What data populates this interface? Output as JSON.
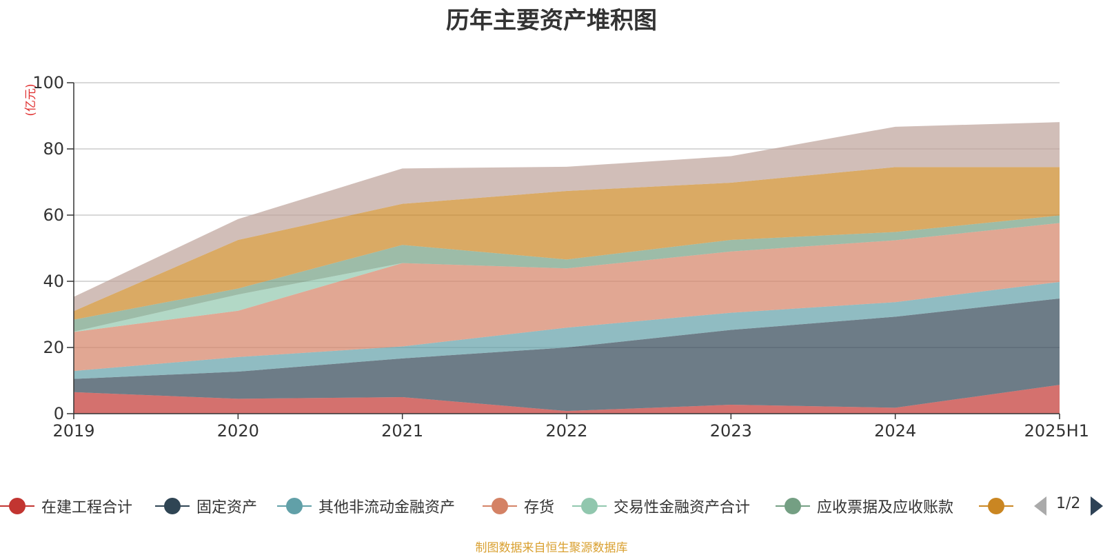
{
  "chart_data": {
    "type": "area",
    "title": "历年主要资产堆积图",
    "ylabel": "(亿元)",
    "xlabel": "",
    "stacked": true,
    "categories": [
      "2019",
      "2020",
      "2021",
      "2022",
      "2023",
      "2024",
      "2025H1"
    ],
    "ylim": [
      0,
      100
    ],
    "yticks": [
      0,
      20,
      40,
      60,
      80,
      100
    ],
    "grid": true,
    "series": [
      {
        "name": "在建工程合计",
        "color": "#c23531",
        "values": [
          6.5,
          4.5,
          5.0,
          0.8,
          2.7,
          1.8,
          8.7
        ]
      },
      {
        "name": "固定资产",
        "color": "#2f4554",
        "values": [
          4.0,
          8.2,
          11.7,
          19.2,
          22.6,
          27.5,
          26.1
        ]
      },
      {
        "name": "其他非流动金融资产",
        "color": "#61a0a8",
        "values": [
          2.4,
          4.4,
          3.6,
          6.0,
          5.2,
          4.4,
          5.0
        ]
      },
      {
        "name": "存货",
        "color": "#d48265",
        "values": [
          11.8,
          14.0,
          25.2,
          17.9,
          18.5,
          18.7,
          17.8
        ]
      },
      {
        "name": "交易性金融资产合计",
        "color": "#91c7ae",
        "values": [
          0.1,
          4.9,
          0.0,
          0.0,
          0.0,
          0.0,
          0.0
        ]
      },
      {
        "name": "应收票据及应收账款",
        "color": "#749f83",
        "values": [
          3.6,
          1.8,
          5.5,
          2.7,
          3.5,
          2.5,
          2.3
        ]
      },
      {
        "name": "",
        "color": "#ca8622",
        "values": [
          2.6,
          14.7,
          12.4,
          20.7,
          17.3,
          19.6,
          14.6
        ]
      },
      {
        "name": "",
        "color": "#bda29a",
        "values": [
          4.3,
          6.3,
          10.7,
          7.3,
          8.0,
          12.2,
          13.6
        ]
      }
    ]
  },
  "legend": {
    "items": [
      {
        "label": "在建工程合计",
        "color": "#c23531"
      },
      {
        "label": "固定资产",
        "color": "#2f4554"
      },
      {
        "label": "其他非流动金融资产",
        "color": "#61a0a8"
      },
      {
        "label": "存货",
        "color": "#d48265"
      },
      {
        "label": "交易性金融资产合计",
        "color": "#91c7ae"
      },
      {
        "label": "应收票据及应收账款",
        "color": "#749f83"
      },
      {
        "label": "",
        "color": "#ca8622"
      }
    ],
    "page": "1/2"
  },
  "source_note": "制图数据来自恒生聚源数据库"
}
